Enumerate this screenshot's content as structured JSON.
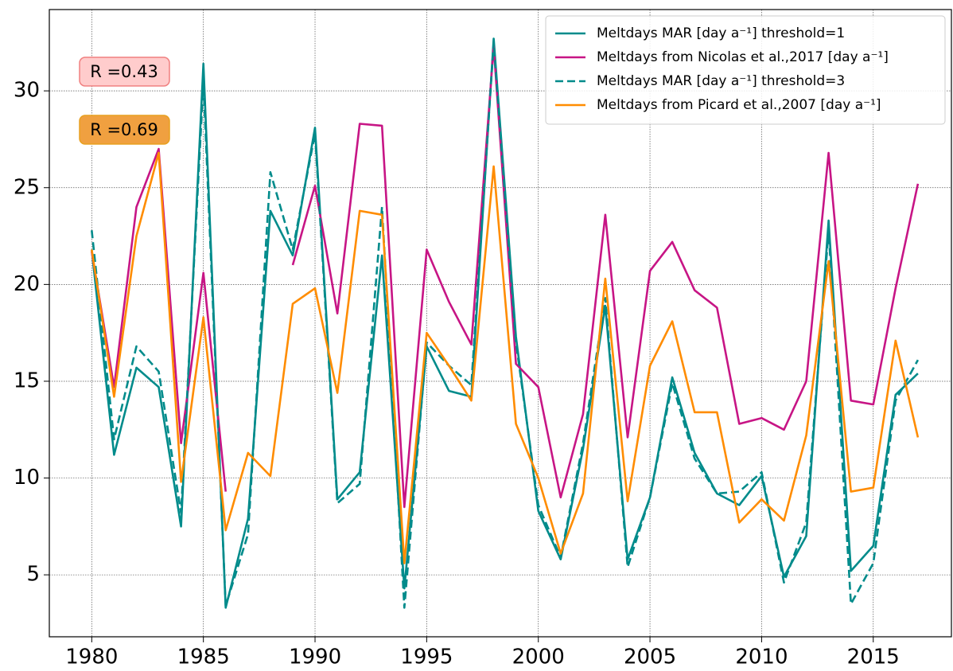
{
  "chart_data": {
    "type": "line",
    "x": [
      1980,
      1981,
      1982,
      1983,
      1984,
      1985,
      1986,
      1987,
      1988,
      1989,
      1990,
      1991,
      1992,
      1993,
      1994,
      1995,
      1996,
      1997,
      1998,
      1999,
      2000,
      2001,
      2002,
      2003,
      2004,
      2005,
      2006,
      2007,
      2008,
      2009,
      2010,
      2011,
      2012,
      2013,
      2014,
      2015,
      2016,
      2017
    ],
    "series": [
      {
        "name": "Meltdays MAR [day a⁻¹] threshold=1",
        "color": "#008b8b",
        "dashed": false,
        "values": [
          21.8,
          11.2,
          15.7,
          14.7,
          7.5,
          31.4,
          3.3,
          7.9,
          23.8,
          21.5,
          28.1,
          8.9,
          10.3,
          21.5,
          4.3,
          16.8,
          14.5,
          14.2,
          32.7,
          17.3,
          8.3,
          5.8,
          11.5,
          18.9,
          5.8,
          9.0,
          15.2,
          11.3,
          9.2,
          8.6,
          10.1,
          4.9,
          7.0,
          23.3,
          5.2,
          6.5,
          14.3,
          15.4
        ]
      },
      {
        "name": "Meltdays from Nicolas et al.,2017 [day a⁻¹]",
        "color": "#c71585",
        "dashed": false,
        "values": [
          21.7,
          14.7,
          24.0,
          27.0,
          11.8,
          20.6,
          9.3,
          null,
          null,
          21.0,
          25.1,
          18.5,
          28.3,
          28.2,
          8.5,
          21.8,
          19.1,
          16.9,
          32.3,
          15.9,
          14.7,
          9.0,
          13.3,
          23.6,
          12.1,
          20.7,
          22.2,
          19.7,
          18.8,
          12.8,
          13.1,
          12.5,
          15.0,
          26.8,
          14.0,
          13.8,
          19.8,
          25.2
        ]
      },
      {
        "name": "Meltdays MAR [day a⁻¹] threshold=3",
        "color": "#008b8b",
        "dashed": true,
        "values": [
          22.8,
          12.0,
          16.8,
          15.5,
          8.2,
          30.5,
          3.4,
          7.1,
          25.8,
          21.8,
          27.8,
          8.7,
          9.7,
          24.0,
          3.3,
          17.0,
          15.8,
          14.8,
          32.5,
          17.0,
          8.6,
          5.9,
          11.8,
          19.3,
          5.4,
          9.0,
          14.9,
          11.0,
          9.2,
          9.3,
          10.3,
          4.6,
          7.7,
          22.8,
          3.5,
          5.6,
          14.0,
          16.1
        ]
      },
      {
        "name": "Meltdays from Picard et al.,2007 [day a⁻¹]",
        "color": "#ff8c00",
        "dashed": false,
        "values": [
          21.8,
          14.2,
          22.5,
          26.8,
          9.8,
          18.3,
          7.3,
          11.3,
          10.1,
          19.0,
          19.8,
          14.4,
          23.8,
          23.6,
          5.6,
          17.5,
          15.8,
          14.0,
          26.1,
          12.8,
          10.0,
          6.1,
          9.2,
          20.3,
          8.8,
          15.8,
          18.1,
          13.4,
          13.4,
          7.7,
          8.9,
          7.8,
          12.2,
          21.2,
          9.3,
          9.5,
          17.1,
          12.1
        ]
      }
    ],
    "annotations": [
      {
        "text": "R =0.43",
        "facecolor": "#ffcccc",
        "edgecolor": "#f08080"
      },
      {
        "text": "R =0.69",
        "facecolor": "#f0a040",
        "edgecolor": "#e8a020"
      }
    ],
    "xlim": [
      1978.1,
      2018.5
    ],
    "ylim": [
      1.8,
      34.2
    ],
    "xticks": [
      1980,
      1985,
      1990,
      1995,
      2000,
      2005,
      2010,
      2015
    ],
    "yticks": [
      5,
      10,
      15,
      20,
      25,
      30
    ],
    "grid": true,
    "legend": "upper right"
  }
}
